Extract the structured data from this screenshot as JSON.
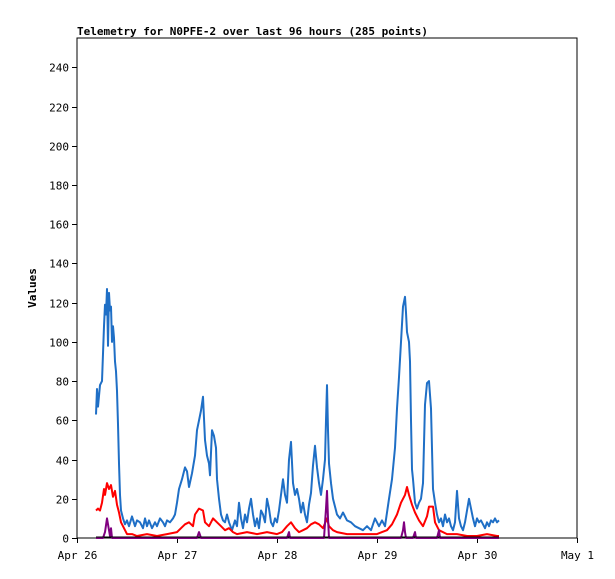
{
  "chart_data": {
    "type": "line",
    "title": "Telemetry for N0PFE-2 over last 96 hours (285 points)",
    "ylabel": "Values",
    "xlabel": "",
    "ylim": [
      0,
      255
    ],
    "yticks": [
      0,
      20,
      40,
      60,
      80,
      100,
      120,
      140,
      160,
      180,
      200,
      220,
      240
    ],
    "xticks": [
      {
        "label": "Apr 26",
        "day": 0
      },
      {
        "label": "Apr 27",
        "day": 1
      },
      {
        "label": "Apr 28",
        "day": 2
      },
      {
        "label": "Apr 29",
        "day": 3
      },
      {
        "label": "Apr 30",
        "day": 4
      },
      {
        "label": "May 1",
        "day": 5
      }
    ],
    "series": [
      {
        "color": "#1f6fc6",
        "points": [
          [
            0.19,
            63
          ],
          [
            0.2,
            76
          ],
          [
            0.21,
            67
          ],
          [
            0.23,
            78
          ],
          [
            0.25,
            80
          ],
          [
            0.27,
            108
          ],
          [
            0.28,
            119
          ],
          [
            0.29,
            114
          ],
          [
            0.3,
            127
          ],
          [
            0.31,
            98
          ],
          [
            0.32,
            125
          ],
          [
            0.33,
            116
          ],
          [
            0.34,
            118
          ],
          [
            0.35,
            100
          ],
          [
            0.36,
            108
          ],
          [
            0.37,
            102
          ],
          [
            0.38,
            90
          ],
          [
            0.39,
            85
          ],
          [
            0.4,
            75
          ],
          [
            0.41,
            58
          ],
          [
            0.42,
            38
          ],
          [
            0.43,
            22
          ],
          [
            0.44,
            14
          ],
          [
            0.46,
            10
          ],
          [
            0.48,
            7
          ],
          [
            0.5,
            9
          ],
          [
            0.52,
            6
          ],
          [
            0.55,
            11
          ],
          [
            0.58,
            6
          ],
          [
            0.6,
            9
          ],
          [
            0.63,
            8
          ],
          [
            0.66,
            5
          ],
          [
            0.68,
            10
          ],
          [
            0.7,
            6
          ],
          [
            0.72,
            9
          ],
          [
            0.75,
            5
          ],
          [
            0.78,
            8
          ],
          [
            0.8,
            6
          ],
          [
            0.83,
            10
          ],
          [
            0.86,
            8
          ],
          [
            0.88,
            6
          ],
          [
            0.9,
            9
          ],
          [
            0.93,
            8
          ],
          [
            0.96,
            10
          ],
          [
            0.98,
            12
          ],
          [
            1.0,
            18
          ],
          [
            1.02,
            25
          ],
          [
            1.05,
            30
          ],
          [
            1.08,
            36
          ],
          [
            1.1,
            34
          ],
          [
            1.12,
            26
          ],
          [
            1.15,
            33
          ],
          [
            1.18,
            42
          ],
          [
            1.2,
            55
          ],
          [
            1.22,
            60
          ],
          [
            1.24,
            65
          ],
          [
            1.26,
            72
          ],
          [
            1.28,
            50
          ],
          [
            1.3,
            42
          ],
          [
            1.32,
            38
          ],
          [
            1.33,
            32
          ],
          [
            1.35,
            55
          ],
          [
            1.37,
            52
          ],
          [
            1.39,
            46
          ],
          [
            1.4,
            30
          ],
          [
            1.42,
            20
          ],
          [
            1.44,
            12
          ],
          [
            1.46,
            9
          ],
          [
            1.48,
            8
          ],
          [
            1.5,
            12
          ],
          [
            1.52,
            8
          ],
          [
            1.55,
            4
          ],
          [
            1.58,
            9
          ],
          [
            1.6,
            6
          ],
          [
            1.62,
            18
          ],
          [
            1.64,
            10
          ],
          [
            1.66,
            5
          ],
          [
            1.68,
            12
          ],
          [
            1.7,
            8
          ],
          [
            1.72,
            15
          ],
          [
            1.74,
            20
          ],
          [
            1.76,
            12
          ],
          [
            1.78,
            6
          ],
          [
            1.8,
            10
          ],
          [
            1.82,
            5
          ],
          [
            1.84,
            14
          ],
          [
            1.86,
            12
          ],
          [
            1.88,
            8
          ],
          [
            1.9,
            20
          ],
          [
            1.92,
            15
          ],
          [
            1.94,
            8
          ],
          [
            1.96,
            6
          ],
          [
            1.98,
            10
          ],
          [
            2.0,
            8
          ],
          [
            2.02,
            14
          ],
          [
            2.04,
            22
          ],
          [
            2.06,
            30
          ],
          [
            2.08,
            22
          ],
          [
            2.1,
            18
          ],
          [
            2.12,
            40
          ],
          [
            2.14,
            49
          ],
          [
            2.16,
            28
          ],
          [
            2.18,
            22
          ],
          [
            2.2,
            25
          ],
          [
            2.22,
            20
          ],
          [
            2.24,
            13
          ],
          [
            2.26,
            18
          ],
          [
            2.28,
            12
          ],
          [
            2.3,
            8
          ],
          [
            2.32,
            17
          ],
          [
            2.34,
            23
          ],
          [
            2.36,
            37
          ],
          [
            2.38,
            47
          ],
          [
            2.4,
            36
          ],
          [
            2.42,
            28
          ],
          [
            2.44,
            22
          ],
          [
            2.46,
            30
          ],
          [
            2.48,
            40
          ],
          [
            2.49,
            60
          ],
          [
            2.5,
            78
          ],
          [
            2.51,
            55
          ],
          [
            2.52,
            38
          ],
          [
            2.54,
            28
          ],
          [
            2.56,
            20
          ],
          [
            2.58,
            16
          ],
          [
            2.6,
            12
          ],
          [
            2.63,
            10
          ],
          [
            2.66,
            13
          ],
          [
            2.7,
            9
          ],
          [
            2.74,
            8
          ],
          [
            2.78,
            6
          ],
          [
            2.82,
            5
          ],
          [
            2.86,
            4
          ],
          [
            2.9,
            6
          ],
          [
            2.94,
            4
          ],
          [
            2.98,
            10
          ],
          [
            3.02,
            6
          ],
          [
            3.05,
            9
          ],
          [
            3.08,
            6
          ],
          [
            3.12,
            20
          ],
          [
            3.15,
            30
          ],
          [
            3.18,
            46
          ],
          [
            3.2,
            66
          ],
          [
            3.22,
            82
          ],
          [
            3.24,
            100
          ],
          [
            3.26,
            118
          ],
          [
            3.28,
            123
          ],
          [
            3.29,
            115
          ],
          [
            3.3,
            105
          ],
          [
            3.32,
            100
          ],
          [
            3.33,
            90
          ],
          [
            3.34,
            60
          ],
          [
            3.35,
            35
          ],
          [
            3.36,
            30
          ],
          [
            3.38,
            18
          ],
          [
            3.4,
            15
          ],
          [
            3.42,
            18
          ],
          [
            3.44,
            20
          ],
          [
            3.46,
            28
          ],
          [
            3.48,
            68
          ],
          [
            3.5,
            79
          ],
          [
            3.52,
            80
          ],
          [
            3.54,
            66
          ],
          [
            3.56,
            25
          ],
          [
            3.58,
            18
          ],
          [
            3.6,
            12
          ],
          [
            3.62,
            8
          ],
          [
            3.64,
            10
          ],
          [
            3.66,
            6
          ],
          [
            3.68,
            12
          ],
          [
            3.7,
            8
          ],
          [
            3.72,
            10
          ],
          [
            3.74,
            6
          ],
          [
            3.76,
            4
          ],
          [
            3.78,
            8
          ],
          [
            3.8,
            24
          ],
          [
            3.82,
            10
          ],
          [
            3.84,
            6
          ],
          [
            3.86,
            4
          ],
          [
            3.88,
            8
          ],
          [
            3.9,
            14
          ],
          [
            3.92,
            20
          ],
          [
            3.94,
            15
          ],
          [
            3.96,
            10
          ],
          [
            3.98,
            6
          ],
          [
            4.0,
            10
          ],
          [
            4.02,
            8
          ],
          [
            4.04,
            9
          ],
          [
            4.06,
            7
          ],
          [
            4.08,
            5
          ],
          [
            4.1,
            8
          ],
          [
            4.12,
            6
          ],
          [
            4.14,
            9
          ],
          [
            4.16,
            8
          ],
          [
            4.18,
            10
          ],
          [
            4.2,
            8
          ],
          [
            4.22,
            9
          ]
        ]
      },
      {
        "color": "#ff0000",
        "points": [
          [
            0.19,
            14
          ],
          [
            0.21,
            15
          ],
          [
            0.23,
            14
          ],
          [
            0.25,
            18
          ],
          [
            0.27,
            25
          ],
          [
            0.28,
            22
          ],
          [
            0.3,
            28
          ],
          [
            0.32,
            25
          ],
          [
            0.34,
            27
          ],
          [
            0.36,
            21
          ],
          [
            0.38,
            24
          ],
          [
            0.4,
            17
          ],
          [
            0.42,
            13
          ],
          [
            0.44,
            8
          ],
          [
            0.47,
            5
          ],
          [
            0.5,
            2
          ],
          [
            0.55,
            2
          ],
          [
            0.6,
            1
          ],
          [
            0.7,
            2
          ],
          [
            0.8,
            1
          ],
          [
            0.9,
            2
          ],
          [
            1.0,
            3
          ],
          [
            1.04,
            5
          ],
          [
            1.08,
            7
          ],
          [
            1.12,
            8
          ],
          [
            1.16,
            6
          ],
          [
            1.18,
            12
          ],
          [
            1.22,
            15
          ],
          [
            1.26,
            14
          ],
          [
            1.28,
            8
          ],
          [
            1.32,
            6
          ],
          [
            1.36,
            10
          ],
          [
            1.4,
            8
          ],
          [
            1.44,
            6
          ],
          [
            1.48,
            4
          ],
          [
            1.52,
            5
          ],
          [
            1.56,
            3
          ],
          [
            1.6,
            2
          ],
          [
            1.7,
            3
          ],
          [
            1.8,
            2
          ],
          [
            1.9,
            3
          ],
          [
            2.0,
            2
          ],
          [
            2.05,
            3
          ],
          [
            2.1,
            6
          ],
          [
            2.14,
            8
          ],
          [
            2.18,
            5
          ],
          [
            2.22,
            3
          ],
          [
            2.26,
            4
          ],
          [
            2.3,
            5
          ],
          [
            2.34,
            7
          ],
          [
            2.38,
            8
          ],
          [
            2.42,
            7
          ],
          [
            2.46,
            5
          ],
          [
            2.5,
            10
          ],
          [
            2.52,
            6
          ],
          [
            2.56,
            4
          ],
          [
            2.6,
            3
          ],
          [
            2.7,
            2
          ],
          [
            2.8,
            2
          ],
          [
            2.9,
            2
          ],
          [
            3.0,
            2
          ],
          [
            3.05,
            3
          ],
          [
            3.1,
            4
          ],
          [
            3.15,
            7
          ],
          [
            3.2,
            12
          ],
          [
            3.24,
            18
          ],
          [
            3.28,
            22
          ],
          [
            3.3,
            26
          ],
          [
            3.32,
            22
          ],
          [
            3.35,
            17
          ],
          [
            3.38,
            13
          ],
          [
            3.42,
            9
          ],
          [
            3.46,
            6
          ],
          [
            3.5,
            11
          ],
          [
            3.52,
            16
          ],
          [
            3.56,
            16
          ],
          [
            3.58,
            8
          ],
          [
            3.62,
            4
          ],
          [
            3.7,
            2
          ],
          [
            3.8,
            2
          ],
          [
            3.9,
            1
          ],
          [
            4.0,
            1
          ],
          [
            4.1,
            2
          ],
          [
            4.2,
            1
          ],
          [
            4.22,
            1
          ]
        ]
      },
      {
        "color": "#800080",
        "points": [
          [
            0.19,
            0
          ],
          [
            0.26,
            0
          ],
          [
            0.28,
            3
          ],
          [
            0.3,
            10
          ],
          [
            0.32,
            4
          ],
          [
            0.33,
            1
          ],
          [
            0.34,
            5
          ],
          [
            0.35,
            0
          ],
          [
            0.7,
            0
          ],
          [
            1.2,
            0
          ],
          [
            1.22,
            3
          ],
          [
            1.24,
            0
          ],
          [
            1.7,
            0
          ],
          [
            2.0,
            0
          ],
          [
            2.1,
            0
          ],
          [
            2.12,
            3
          ],
          [
            2.13,
            0
          ],
          [
            2.47,
            0
          ],
          [
            2.49,
            15
          ],
          [
            2.5,
            24
          ],
          [
            2.51,
            10
          ],
          [
            2.52,
            0
          ],
          [
            3.24,
            0
          ],
          [
            3.26,
            4
          ],
          [
            3.27,
            8
          ],
          [
            3.28,
            3
          ],
          [
            3.29,
            0
          ],
          [
            3.36,
            0
          ],
          [
            3.38,
            3
          ],
          [
            3.39,
            0
          ],
          [
            3.6,
            0
          ],
          [
            3.62,
            4
          ],
          [
            3.63,
            0
          ],
          [
            4.22,
            0
          ]
        ]
      },
      {
        "color": "#000000",
        "points": [
          [
            0.19,
            0.5
          ],
          [
            4.22,
            0.5
          ]
        ]
      }
    ]
  }
}
